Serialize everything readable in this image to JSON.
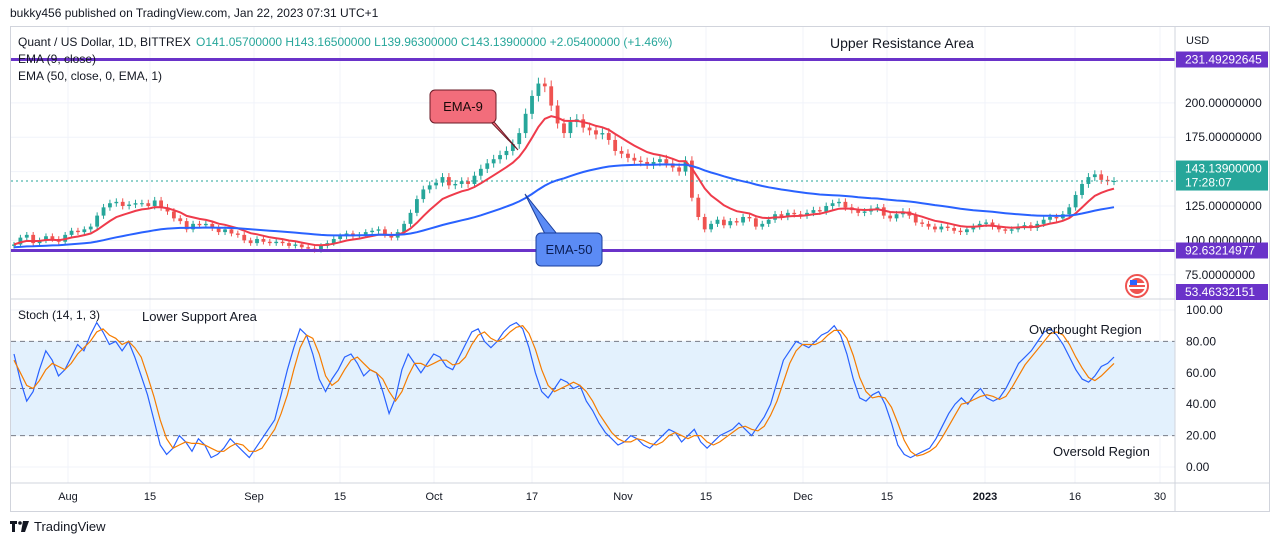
{
  "header": {
    "published": "bukky456 published on TradingView.com, Jan 22, 2023 07:31 UTC+1"
  },
  "legend": {
    "symbol": "Quant / US Dollar, 1D, BITTREX",
    "ohlc": "O141.05700000 H143.16500000 L139.96300000 C143.13900000 +2.05400000 (+1.46%)",
    "ema9": "EMA (9, close)",
    "ema50": "EMA (50, close, 0, EMA, 1)",
    "stoch": "Stoch (14, 1, 3)"
  },
  "annotations": {
    "upper": "Upper Resistance Area",
    "lower": "Lower Support Area",
    "ema9_callout": "EMA-9",
    "ema50_callout": "EMA-50",
    "overbought": "Overbought Region",
    "oversold": "Oversold Region"
  },
  "price_axis": {
    "currency": "USD",
    "resistance": "231.49292645",
    "support": "92.63214977",
    "last_price": "143.13900000",
    "countdown": "17:28:07",
    "low_marker": "53.46332151"
  },
  "footer": {
    "brand": "TradingView"
  },
  "colors": {
    "ema9": "#ef3b4b",
    "ema50": "#2962ff",
    "level": "#6a33c9",
    "up": "#26a69a",
    "down": "#ef5350",
    "stoch_k": "#2962ff",
    "stoch_d": "#f57c00",
    "stoch_band": "#e3f1fd"
  },
  "chart_data": [
    {
      "type": "candlestick",
      "title": "Quant / US Dollar, 1D, BITTREX",
      "ylim": [
        60,
        240
      ],
      "yticks": [
        75,
        100,
        125,
        150,
        175,
        200
      ],
      "x_ticks": [
        "Aug",
        "15",
        "Sep",
        "15",
        "Oct",
        "17",
        "Nov",
        "15",
        "Dec",
        "15",
        "2023",
        "16",
        "30"
      ],
      "last_close": 143.139,
      "levels": [
        {
          "name": "Upper Resistance Area",
          "value": 231.49292645
        },
        {
          "name": "Lower Support Area",
          "value": 92.63214977
        }
      ],
      "closes": [
        97,
        102,
        104,
        98,
        100,
        103,
        101,
        99,
        104,
        107,
        106,
        108,
        110,
        118,
        124,
        127,
        128,
        125,
        126,
        127,
        127,
        125,
        129,
        124,
        121,
        116,
        114,
        108,
        112,
        111,
        112,
        109,
        106,
        108,
        105,
        104,
        100,
        98,
        101,
        99,
        98,
        99,
        98,
        96,
        97,
        95,
        94,
        93,
        96,
        98,
        101,
        103,
        105,
        103,
        104,
        106,
        107,
        108,
        104,
        102,
        106,
        112,
        120,
        130,
        137,
        140,
        142,
        146,
        140,
        141,
        143,
        141,
        147,
        152,
        156,
        159,
        162,
        165,
        170,
        178,
        192,
        205,
        214,
        212,
        198,
        185,
        178,
        186,
        188,
        182,
        180,
        177,
        178,
        173,
        165,
        163,
        160,
        158,
        157,
        155,
        157,
        159,
        156,
        153,
        150,
        158,
        131,
        117,
        108,
        112,
        115,
        111,
        114,
        113,
        117,
        116,
        110,
        112,
        115,
        119,
        117,
        120,
        119,
        118,
        120,
        122,
        121,
        125,
        127,
        128,
        124,
        122,
        120,
        121,
        123,
        124,
        118,
        116,
        119,
        121,
        118,
        113,
        112,
        110,
        108,
        110,
        109,
        107,
        106,
        108,
        110,
        112,
        113,
        110,
        108,
        107,
        108,
        110,
        111,
        109,
        112,
        115,
        117,
        116,
        119,
        124,
        133,
        141,
        146,
        148,
        144,
        143,
        143.139
      ],
      "ema9": [
        97,
        98.5,
        99.6,
        99.5,
        99.6,
        100.3,
        100.4,
        100.1,
        100.9,
        102.1,
        102.8,
        103.8,
        105,
        107.6,
        110.9,
        114.1,
        116.9,
        118.5,
        120,
        121.4,
        122.5,
        123,
        124.2,
        124.1,
        123.4,
        121.9,
        120.3,
        117.8,
        116.7,
        115.6,
        114.9,
        113.7,
        112.1,
        111.3,
        110,
        108.8,
        107,
        105.2,
        104.4,
        103.3,
        102.2,
        101.6,
        100.9,
        99.9,
        99.3,
        98.4,
        97.5,
        96.6,
        96.5,
        96.8,
        97.6,
        98.7,
        99.9,
        100.6,
        101.3,
        102.2,
        103.2,
        104.2,
        104.1,
        103.7,
        104.1,
        105.7,
        108.6,
        112.8,
        117.6,
        122.1,
        126.1,
        130.1,
        132.1,
        133.9,
        135.7,
        136.8,
        138.8,
        141.5,
        144.4,
        147.3,
        150.2,
        153.2,
        156.5,
        160.8,
        167,
        174.6,
        182.5,
        188.4,
        190.3,
        189.2,
        187,
        186.8,
        187,
        186,
        184.8,
        183.2,
        182.2,
        180.4,
        177.3,
        174.5,
        171.6,
        168.9,
        166.5,
        164.2,
        162.8,
        162,
        160.8,
        159.3,
        157.5,
        157.6,
        152.3,
        145.2,
        137.8,
        132.6,
        129.1,
        125.5,
        123.2,
        121.2,
        120.4,
        119.5,
        117.6,
        116.5,
        116.2,
        116.7,
        116.8,
        117.4,
        117.7,
        117.8,
        118.3,
        119,
        119.4,
        120.5,
        121.8,
        123,
        123.2,
        123,
        122.4,
        122.1,
        122.3,
        122.6,
        121.7,
        120.6,
        120.3,
        120.4,
        119.9,
        118.5,
        117.2,
        115.7,
        114.2,
        113.4,
        112.5,
        111.4,
        110.4,
        109.9,
        109.9,
        110.3,
        110.8,
        110.6,
        110.1,
        109.5,
        109.2,
        109.4,
        109.7,
        109.6,
        110.1,
        111,
        112.2,
        113,
        114.2,
        116.2,
        119.6,
        123.9,
        128.3,
        132.3,
        134.6,
        136.3,
        137.6
      ]
    },
    {
      "type": "line",
      "title": "Stoch (14, 1, 3)",
      "ylim": [
        -5,
        105
      ],
      "yticks": [
        0,
        20,
        40,
        60,
        80,
        100
      ],
      "bands": [
        20,
        50,
        80
      ],
      "series": [
        {
          "name": "%K",
          "values": [
            72,
            55,
            42,
            48,
            62,
            74,
            68,
            58,
            62,
            70,
            78,
            74,
            84,
            92,
            86,
            78,
            80,
            74,
            80,
            70,
            58,
            46,
            30,
            14,
            8,
            12,
            20,
            16,
            10,
            18,
            14,
            6,
            8,
            12,
            18,
            14,
            10,
            6,
            12,
            18,
            24,
            30,
            46,
            62,
            76,
            88,
            84,
            72,
            56,
            48,
            56,
            62,
            70,
            72,
            66,
            58,
            62,
            60,
            48,
            34,
            44,
            62,
            72,
            66,
            60,
            66,
            72,
            70,
            64,
            62,
            70,
            78,
            86,
            88,
            80,
            76,
            80,
            86,
            90,
            92,
            88,
            76,
            60,
            48,
            44,
            50,
            56,
            54,
            50,
            52,
            42,
            36,
            28,
            22,
            18,
            14,
            16,
            20,
            18,
            14,
            12,
            16,
            20,
            24,
            22,
            16,
            20,
            24,
            16,
            12,
            16,
            20,
            22,
            24,
            28,
            24,
            20,
            26,
            32,
            40,
            54,
            68,
            74,
            80,
            78,
            76,
            80,
            84,
            86,
            90,
            84,
            72,
            56,
            44,
            42,
            46,
            48,
            40,
            28,
            14,
            8,
            6,
            8,
            10,
            12,
            18,
            26,
            34,
            40,
            44,
            40,
            46,
            50,
            44,
            42,
            44,
            50,
            58,
            66,
            70,
            74,
            80,
            86,
            88,
            84,
            78,
            70,
            62,
            56,
            54,
            58,
            64,
            66,
            70
          ]
        },
        {
          "name": "%D",
          "values": [
            68,
            60,
            52,
            50,
            55,
            62,
            66,
            64,
            62,
            66,
            72,
            76,
            80,
            86,
            88,
            84,
            82,
            78,
            80,
            76,
            70,
            58,
            45,
            30,
            18,
            12,
            14,
            16,
            15,
            15,
            14,
            12,
            10,
            10,
            13,
            15,
            14,
            10,
            10,
            12,
            18,
            24,
            34,
            46,
            62,
            76,
            84,
            82,
            72,
            58,
            52,
            55,
            62,
            68,
            70,
            66,
            62,
            60,
            56,
            48,
            42,
            48,
            58,
            66,
            66,
            64,
            66,
            68,
            68,
            65,
            66,
            70,
            78,
            84,
            86,
            82,
            80,
            82,
            86,
            89,
            90,
            85,
            75,
            62,
            52,
            48,
            50,
            52,
            54,
            52,
            48,
            42,
            34,
            28,
            22,
            18,
            16,
            16,
            18,
            17,
            15,
            14,
            16,
            20,
            22,
            20,
            18,
            20,
            20,
            16,
            14,
            16,
            19,
            22,
            25,
            26,
            24,
            23,
            26,
            33,
            42,
            54,
            66,
            74,
            78,
            78,
            78,
            80,
            84,
            87,
            87,
            82,
            71,
            57,
            48,
            44,
            45,
            44,
            38,
            28,
            17,
            10,
            7,
            8,
            10,
            13,
            19,
            26,
            33,
            40,
            41,
            43,
            45,
            46,
            45,
            43,
            45,
            51,
            58,
            65,
            70,
            75,
            80,
            85,
            86,
            84,
            78,
            70,
            63,
            57,
            55,
            58,
            62,
            66
          ]
        }
      ]
    }
  ]
}
